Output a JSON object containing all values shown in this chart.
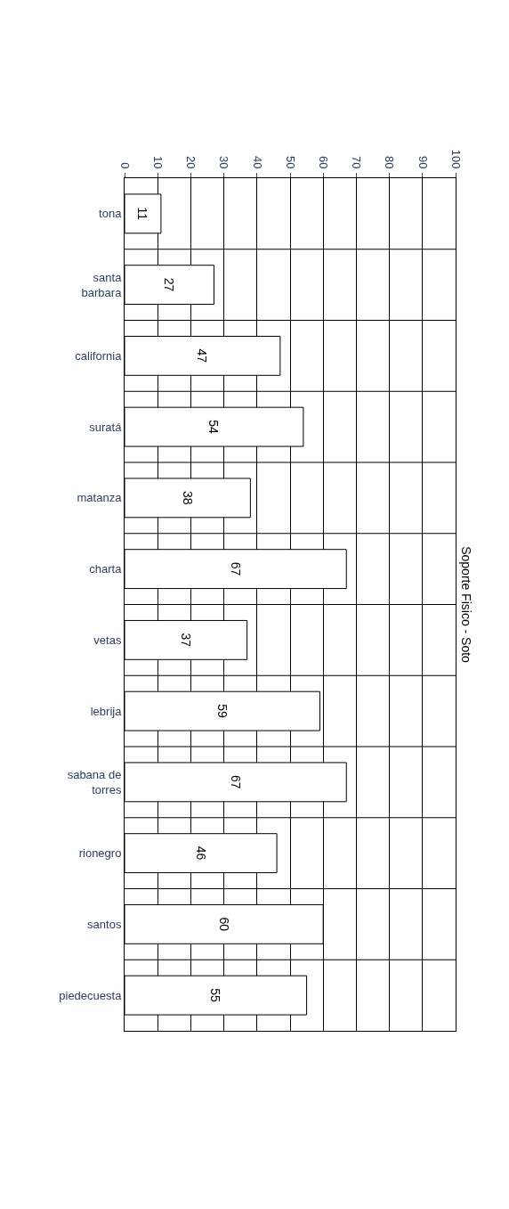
{
  "chart_data": {
    "type": "bar",
    "orientation": "horizontal",
    "title": "Soporte Fisico - Soto",
    "categories": [
      "tona",
      "santa barbara",
      "california",
      "suratá",
      "matanza",
      "charta",
      "vetas",
      "lebrija",
      "sabana de torres",
      "rionegro",
      "santos",
      "piedecuesta"
    ],
    "values": [
      11,
      27,
      47,
      54,
      38,
      67,
      37,
      59,
      67,
      46,
      60,
      55
    ],
    "color": "#ffffff",
    "xlim": [
      0,
      100
    ],
    "xticks": [
      0,
      10,
      20,
      30,
      40,
      50,
      60,
      70,
      80,
      90,
      100
    ],
    "grid": true,
    "data_labels": true,
    "legend": false
  }
}
